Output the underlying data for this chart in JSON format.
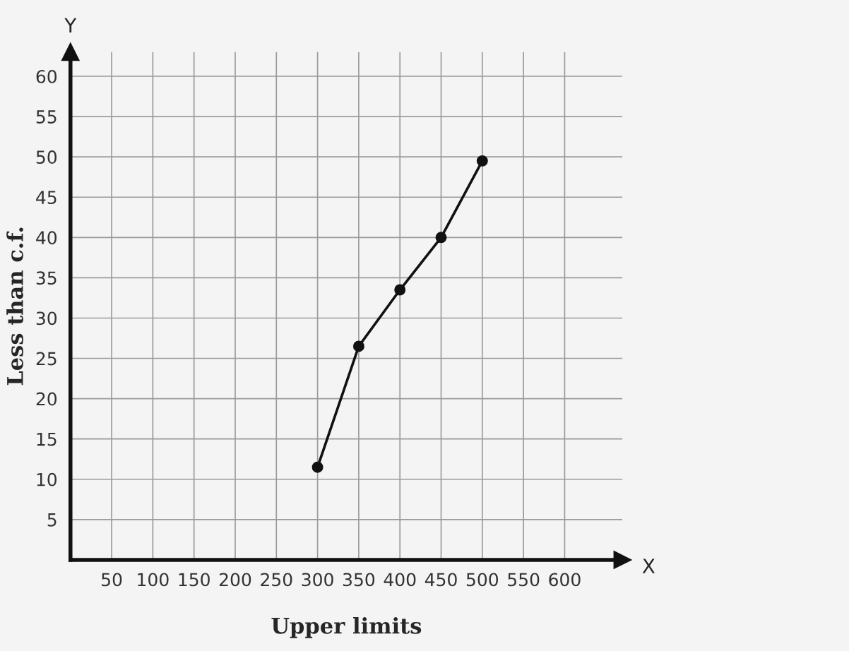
{
  "chart_data": {
    "type": "line",
    "xlabel": "Upper limits",
    "ylabel": "Less than c.f.",
    "x": [
      300,
      350,
      400,
      450,
      500
    ],
    "series": [
      {
        "color": "#111111",
        "values": [
          11.5,
          26.5,
          33.5,
          40,
          49.5
        ]
      }
    ],
    "xlim": [
      0,
      670
    ],
    "ylim": [
      0,
      63
    ],
    "xticks": [
      50,
      100,
      150,
      200,
      250,
      300,
      350,
      400,
      450,
      500,
      550,
      600
    ],
    "yticks": [
      5,
      10,
      15,
      20,
      25,
      30,
      35,
      40,
      45,
      50,
      55,
      60
    ],
    "annotations": [
      "X",
      "Y"
    ],
    "grid": true,
    "marker": "circle",
    "line_style": "solid",
    "legend": false
  }
}
